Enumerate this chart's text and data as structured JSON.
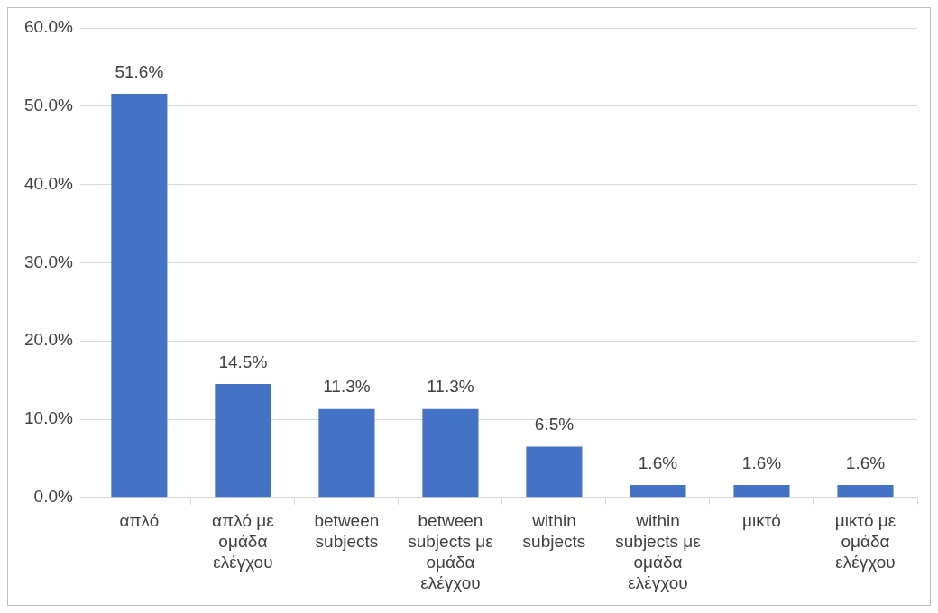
{
  "chart_data": {
    "type": "bar",
    "categories": [
      "απλό",
      "απλό με ομάδα ελέγχου",
      "between subjects",
      "between subjects με ομάδα ελέγχου",
      "within subjects",
      "within subjects με ομάδα ελέγχου",
      "μικτό",
      "μικτό με ομάδα ελέγχου"
    ],
    "values": [
      51.6,
      14.5,
      11.3,
      11.3,
      6.5,
      1.6,
      1.6,
      1.6
    ],
    "value_labels": [
      "51.6%",
      "14.5%",
      "11.3%",
      "11.3%",
      "6.5%",
      "1.6%",
      "1.6%",
      "1.6%"
    ],
    "color": "#4472c4",
    "ylim": [
      0,
      60
    ],
    "yticks": [
      {
        "value": 0,
        "label": "0.0%"
      },
      {
        "value": 10,
        "label": "10.0%"
      },
      {
        "value": 20,
        "label": "20.0%"
      },
      {
        "value": 30,
        "label": "30.0%"
      },
      {
        "value": 40,
        "label": "40.0%"
      },
      {
        "value": 50,
        "label": "50.0%"
      },
      {
        "value": 60,
        "label": "60.0%"
      }
    ],
    "grid": "y",
    "legend": false
  }
}
